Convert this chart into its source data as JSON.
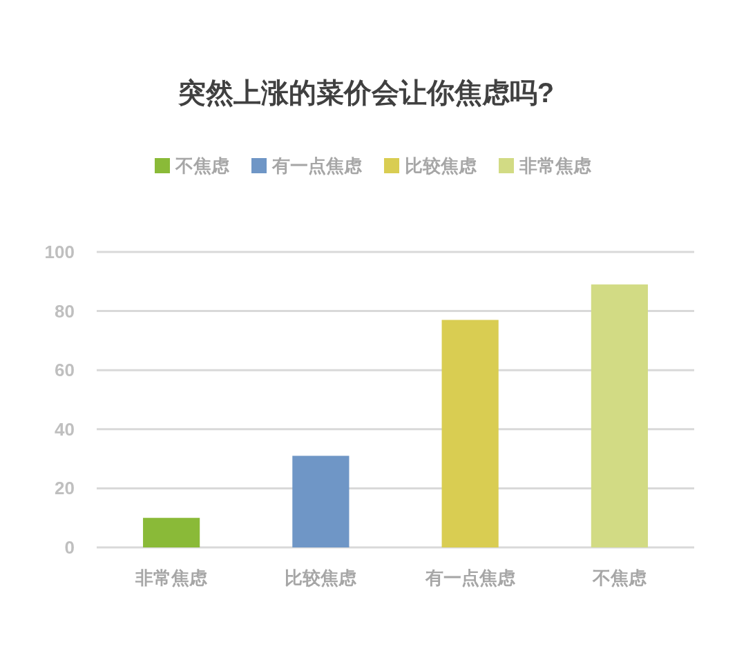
{
  "chart_data": {
    "type": "bar",
    "title": "突然上涨的菜价会让你焦虑吗?",
    "categories": [
      "非常焦虑",
      "比较焦虑",
      "有一点焦虑",
      "不焦虑"
    ],
    "series": [
      {
        "name": "不焦虑",
        "color": "#8aba38",
        "values": [
          10,
          null,
          null,
          null
        ]
      },
      {
        "name": "有一点焦虑",
        "color": "#6f96c6",
        "values": [
          null,
          31,
          null,
          null
        ]
      },
      {
        "name": "比较焦虑",
        "color": "#d9cd52",
        "values": [
          null,
          null,
          77,
          null
        ]
      },
      {
        "name": "非常焦虑",
        "color": "#d2db84",
        "values": [
          null,
          null,
          null,
          89
        ]
      }
    ],
    "stacked": true,
    "ylim": [
      0,
      100
    ],
    "yticks": [
      0,
      20,
      40,
      60,
      80,
      100
    ],
    "grid": "y",
    "legend": "top"
  }
}
